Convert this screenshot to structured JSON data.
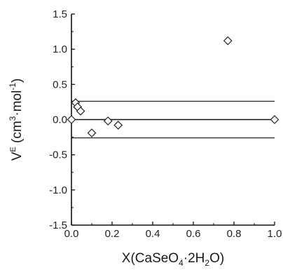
{
  "chart_data": {
    "type": "scatter",
    "title": "",
    "xlabel": {
      "base": "X(CaSeO",
      "sub1": "4",
      "mid": "·2H",
      "sub2": "2",
      "end": "O)"
    },
    "ylabel": {
      "base": "V",
      "sup1": "E",
      "mid": " (cm",
      "sup2": "3",
      "mid2": "·mol",
      "sup3": "-1",
      "end": ")"
    },
    "xlim": [
      0.0,
      1.0
    ],
    "ylim": [
      -1.5,
      1.5
    ],
    "x_ticks": [
      0.0,
      0.2,
      0.4,
      0.6,
      0.8,
      1.0
    ],
    "x_tick_labels": [
      "0.0",
      "0.2",
      "0.4",
      "0.6",
      "0.8",
      "1.0"
    ],
    "y_ticks": [
      -1.5,
      -1.0,
      -0.5,
      0.0,
      0.5,
      1.0,
      1.5
    ],
    "y_tick_labels": [
      "-1.5",
      "-1.0",
      "-0.5",
      "0.0",
      "0.5",
      "1.0",
      "1.5"
    ],
    "grid": false,
    "series": [
      {
        "marker": "diamond-open",
        "points": [
          {
            "x": 0.0,
            "y": 0.0
          },
          {
            "x": 0.02,
            "y": 0.24
          },
          {
            "x": 0.03,
            "y": 0.18
          },
          {
            "x": 0.045,
            "y": 0.12
          },
          {
            "x": 0.1,
            "y": -0.19
          },
          {
            "x": 0.18,
            "y": -0.02
          },
          {
            "x": 0.23,
            "y": -0.08
          },
          {
            "x": 0.77,
            "y": 1.12
          },
          {
            "x": 1.0,
            "y": 0.0
          }
        ]
      }
    ],
    "reference_lines": [
      {
        "y": 0.26,
        "style": "solid",
        "color": "#333333"
      },
      {
        "y": 0.0,
        "style": "solid",
        "color": "#111111"
      },
      {
        "y": -0.26,
        "style": "solid",
        "color": "#333333"
      }
    ],
    "colors": {
      "axis": "#111111",
      "marker_stroke": "#222222",
      "marker_fill": "#ffffff",
      "text": "#222222"
    }
  }
}
